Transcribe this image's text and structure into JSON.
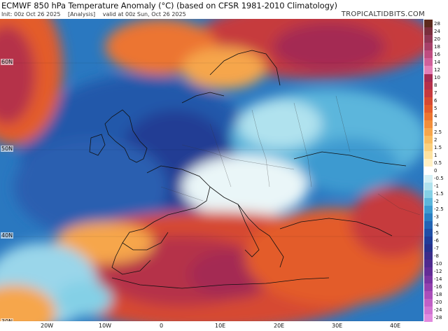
{
  "header": {
    "title": "ECMWF 850 hPa Temperature Anomaly (°C) (based on CFSR 1981-2010 Climatology)",
    "init": "Init: 00z Oct 26 2025",
    "analysis": "[Analysis]",
    "valid": "valid at 00z Sun, Oct 26 2025",
    "brand": "TROPICALTIDBITS.COM"
  },
  "map": {
    "lat_labels": [
      "60N",
      "50N",
      "40N",
      "30N"
    ],
    "lon_labels": [
      "20W",
      "10W",
      "0",
      "10E",
      "20E",
      "30E",
      "40E"
    ]
  },
  "colorbar": {
    "labels": [
      "28",
      "24",
      "20",
      "18",
      "16",
      "14",
      "12",
      "10",
      "8",
      "7",
      "6",
      "5",
      "4",
      "3",
      "2.5",
      "2",
      "1.5",
      "1",
      "0.5",
      "0",
      "-0.5",
      "-1",
      "-1.5",
      "-2",
      "-2.5",
      "-3",
      "-4",
      "-5",
      "-6",
      "-7",
      "-8",
      "-10",
      "-12",
      "-14",
      "-16",
      "-18",
      "-20",
      "-24",
      "-28"
    ],
    "colors": [
      "#5c2a1c",
      "#7a2e3c",
      "#8e3754",
      "#a64068",
      "#bf4c80",
      "#d0609a",
      "#e27fb6",
      "#a42a52",
      "#b5304a",
      "#c63a3e",
      "#d64a32",
      "#e35c2c",
      "#ec7530",
      "#f28e3a",
      "#f6a64c",
      "#f9bd62",
      "#fbd07e",
      "#fde2a0",
      "#fff0c4",
      "#ffffff",
      "#d4f0f6",
      "#b0e2ee",
      "#84d0e6",
      "#5cb6dc",
      "#3c9ad0",
      "#2a7ec2",
      "#2264b4",
      "#1f4ea6",
      "#203c98",
      "#26308c",
      "#3a2c8a",
      "#4e2a8e",
      "#622c96",
      "#7a34a2",
      "#9240ae",
      "#aa4eba",
      "#c060c6",
      "#d074d2",
      "#e08ade"
    ]
  }
}
